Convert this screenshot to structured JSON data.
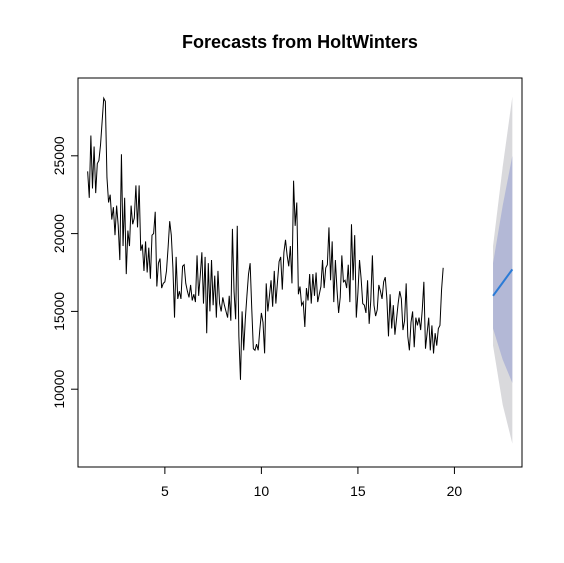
{
  "chart_data": {
    "type": "line",
    "title": "Forecasts from HoltWinters",
    "xlabel": "",
    "ylabel": "",
    "xlim": [
      0.5,
      23.5
    ],
    "ylim": [
      5000,
      30000
    ],
    "x_ticks": [
      5,
      10,
      15,
      20
    ],
    "y_ticks": [
      10000,
      15000,
      20000,
      25000
    ],
    "x_tick_labels": [
      "5",
      "10",
      "15",
      "20"
    ],
    "y_tick_labels": [
      "10000",
      "15000",
      "20000",
      "25000"
    ],
    "grid": false,
    "legend": "none",
    "colors": {
      "observed": "#000000",
      "forecast": "#2b7bd6",
      "band_80": "#b3b8d6",
      "band_95": "#d9d9dc"
    },
    "series": [
      {
        "name": "",
        "x_start": 1,
        "frequency": 12,
        "values": [
          24000,
          22300,
          26300,
          22900,
          25600,
          22600,
          24500,
          24700,
          25700,
          27200,
          28700,
          28500,
          23600,
          22000,
          22500,
          20900,
          21700,
          19900,
          21800,
          20500,
          18300,
          25100,
          19200,
          22300,
          17400,
          20200,
          19200,
          21800,
          20600,
          21000,
          23100,
          20400,
          23100,
          18900,
          19300,
          17600,
          19500,
          17500,
          19100,
          17100,
          19900,
          20000,
          21400,
          16600,
          18100,
          18400,
          16500,
          16800,
          16900,
          17600,
          19100,
          20800,
          19900,
          17800,
          14600,
          18500,
          15800,
          16300,
          15800,
          17900,
          18000,
          16800,
          16300,
          15900,
          16700,
          15700,
          16100,
          15600,
          18600,
          16000,
          17300,
          18800,
          15500,
          18500,
          13600,
          18100,
          15000,
          18300,
          15400,
          17300,
          14600,
          17600,
          15500,
          15000,
          15900,
          15400,
          15000,
          14600,
          16000,
          14400,
          20300,
          16300,
          14500,
          20500,
          13400,
          10600,
          15000,
          12500,
          14500,
          16000,
          17400,
          18100,
          15200,
          12600,
          12500,
          12900,
          12500,
          13800,
          14900,
          14300,
          12300,
          16800,
          15000,
          16000,
          17000,
          15300,
          17600,
          15500,
          16900,
          18200,
          18500,
          16400,
          18800,
          19600,
          18600,
          17900,
          19200,
          16800,
          23400,
          20500,
          22000,
          16100,
          16600,
          15400,
          15600,
          14000,
          16500,
          15700,
          17400,
          15500,
          17400,
          16000,
          17500,
          15600,
          16100,
          16600,
          18300,
          16500,
          17800,
          18000,
          20400,
          17000,
          19500,
          15600,
          18300,
          16400,
          14900,
          15900,
          18600,
          16900,
          17000,
          16500,
          18000,
          15600,
          20600,
          17000,
          19900,
          14600,
          16200,
          18300,
          17100,
          15500,
          15400,
          14900,
          17000,
          14200,
          15700,
          18600,
          15400,
          14700,
          15100,
          16700,
          16300,
          15800,
          16900,
          17200,
          15800,
          13400,
          16100,
          13900,
          15400,
          13500,
          14500,
          15500,
          16300,
          15800,
          13800,
          14400,
          16800,
          13400,
          12500,
          14300,
          15000,
          12700,
          14600,
          14100,
          14600,
          13800,
          15100,
          16900,
          12600,
          13600,
          14600,
          12500,
          14100,
          12300,
          13600,
          12800,
          13900,
          14100,
          16400,
          17800
        ]
      }
    ],
    "forecast": {
      "x": [
        22,
        22.5,
        23
      ],
      "mean": [
        16000,
        16850,
        17700
      ],
      "lo80": [
        13900,
        11900,
        10400
      ],
      "hi80": [
        18100,
        21800,
        25000
      ],
      "lo95": [
        12800,
        9000,
        6500
      ],
      "hi95": [
        19200,
        24300,
        28800
      ]
    }
  }
}
